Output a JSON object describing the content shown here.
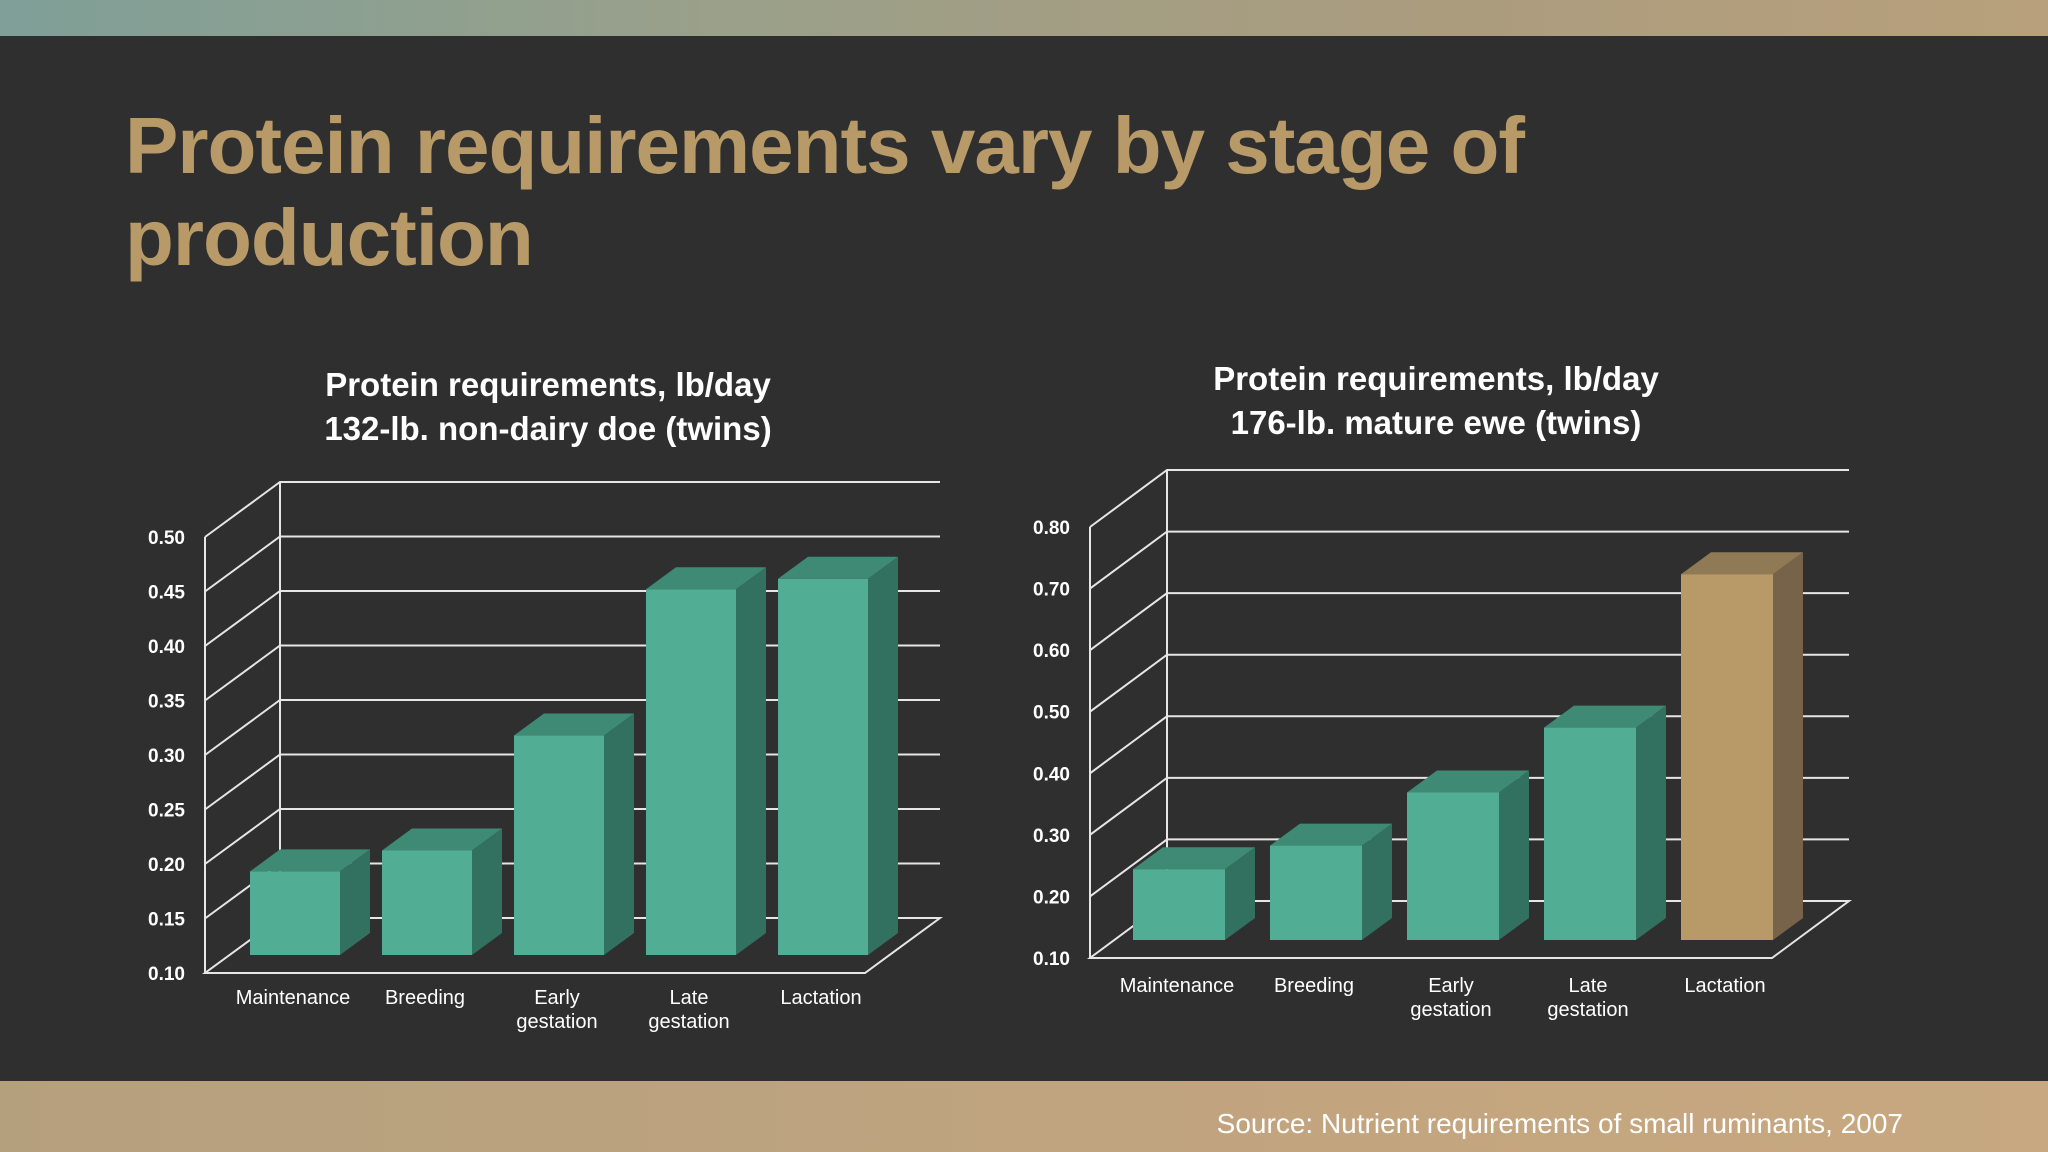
{
  "slide": {
    "title": "Protein requirements vary by stage of production",
    "source": "Source:  Nutrient requirements of small ruminants, 2007"
  },
  "colors": {
    "background": "#2f2f2f",
    "title": "#b79a67",
    "bar_front": "#52ad95",
    "bar_side": "#32705f",
    "bar_top": "#3f8a75",
    "highlight_front": "#b79a67",
    "highlight_side": "#776349",
    "highlight_top": "#8f7a55",
    "grid": "#e6e6e6",
    "text": "#ffffff"
  },
  "chart_data": [
    {
      "type": "bar",
      "title_lines": [
        "Protein requirements, lb/day",
        "132-lb. non-dairy doe (twins)"
      ],
      "categories": [
        "Maintenance",
        "Breeding",
        "Early gestation",
        "Late gestation",
        "Lactation"
      ],
      "category_lines": [
        [
          "Maintenance"
        ],
        [
          "Breeding"
        ],
        [
          "Early",
          "gestation"
        ],
        [
          "Late",
          "gestation"
        ],
        [
          "Lactation"
        ]
      ],
      "values": [
        0.18,
        0.2,
        0.31,
        0.45,
        0.46
      ],
      "ylim": [
        0.1,
        0.5
      ],
      "yticks": [
        0.1,
        0.15,
        0.2,
        0.25,
        0.3,
        0.35,
        0.4,
        0.45,
        0.5
      ],
      "ytick_labels": [
        "0.10",
        "0.15",
        "0.20",
        "0.25",
        "0.30",
        "0.35",
        "0.40",
        "0.45",
        "0.50"
      ],
      "highlight_index": -1,
      "grid": true,
      "style": "3d"
    },
    {
      "type": "bar",
      "title_lines": [
        "Protein requirements, lb/day",
        "176-lb. mature ewe (twins)"
      ],
      "categories": [
        "Maintenance",
        "Breeding",
        "Early gestation",
        "Late gestation",
        "Lactation"
      ],
      "category_lines": [
        [
          "Maintenance"
        ],
        [
          "Breeding"
        ],
        [
          "Early",
          "gestation"
        ],
        [
          "Late",
          "gestation"
        ],
        [
          "Lactation"
        ]
      ],
      "values": [
        0.22,
        0.26,
        0.35,
        0.46,
        0.72
      ],
      "ylim": [
        0.1,
        0.8
      ],
      "yticks": [
        0.1,
        0.2,
        0.3,
        0.4,
        0.5,
        0.6,
        0.7,
        0.8
      ],
      "ytick_labels": [
        "0.10",
        "0.20",
        "0.30",
        "0.40",
        "0.50",
        "0.60",
        "0.70",
        "0.80"
      ],
      "highlight_index": 4,
      "grid": true,
      "style": "3d"
    }
  ]
}
